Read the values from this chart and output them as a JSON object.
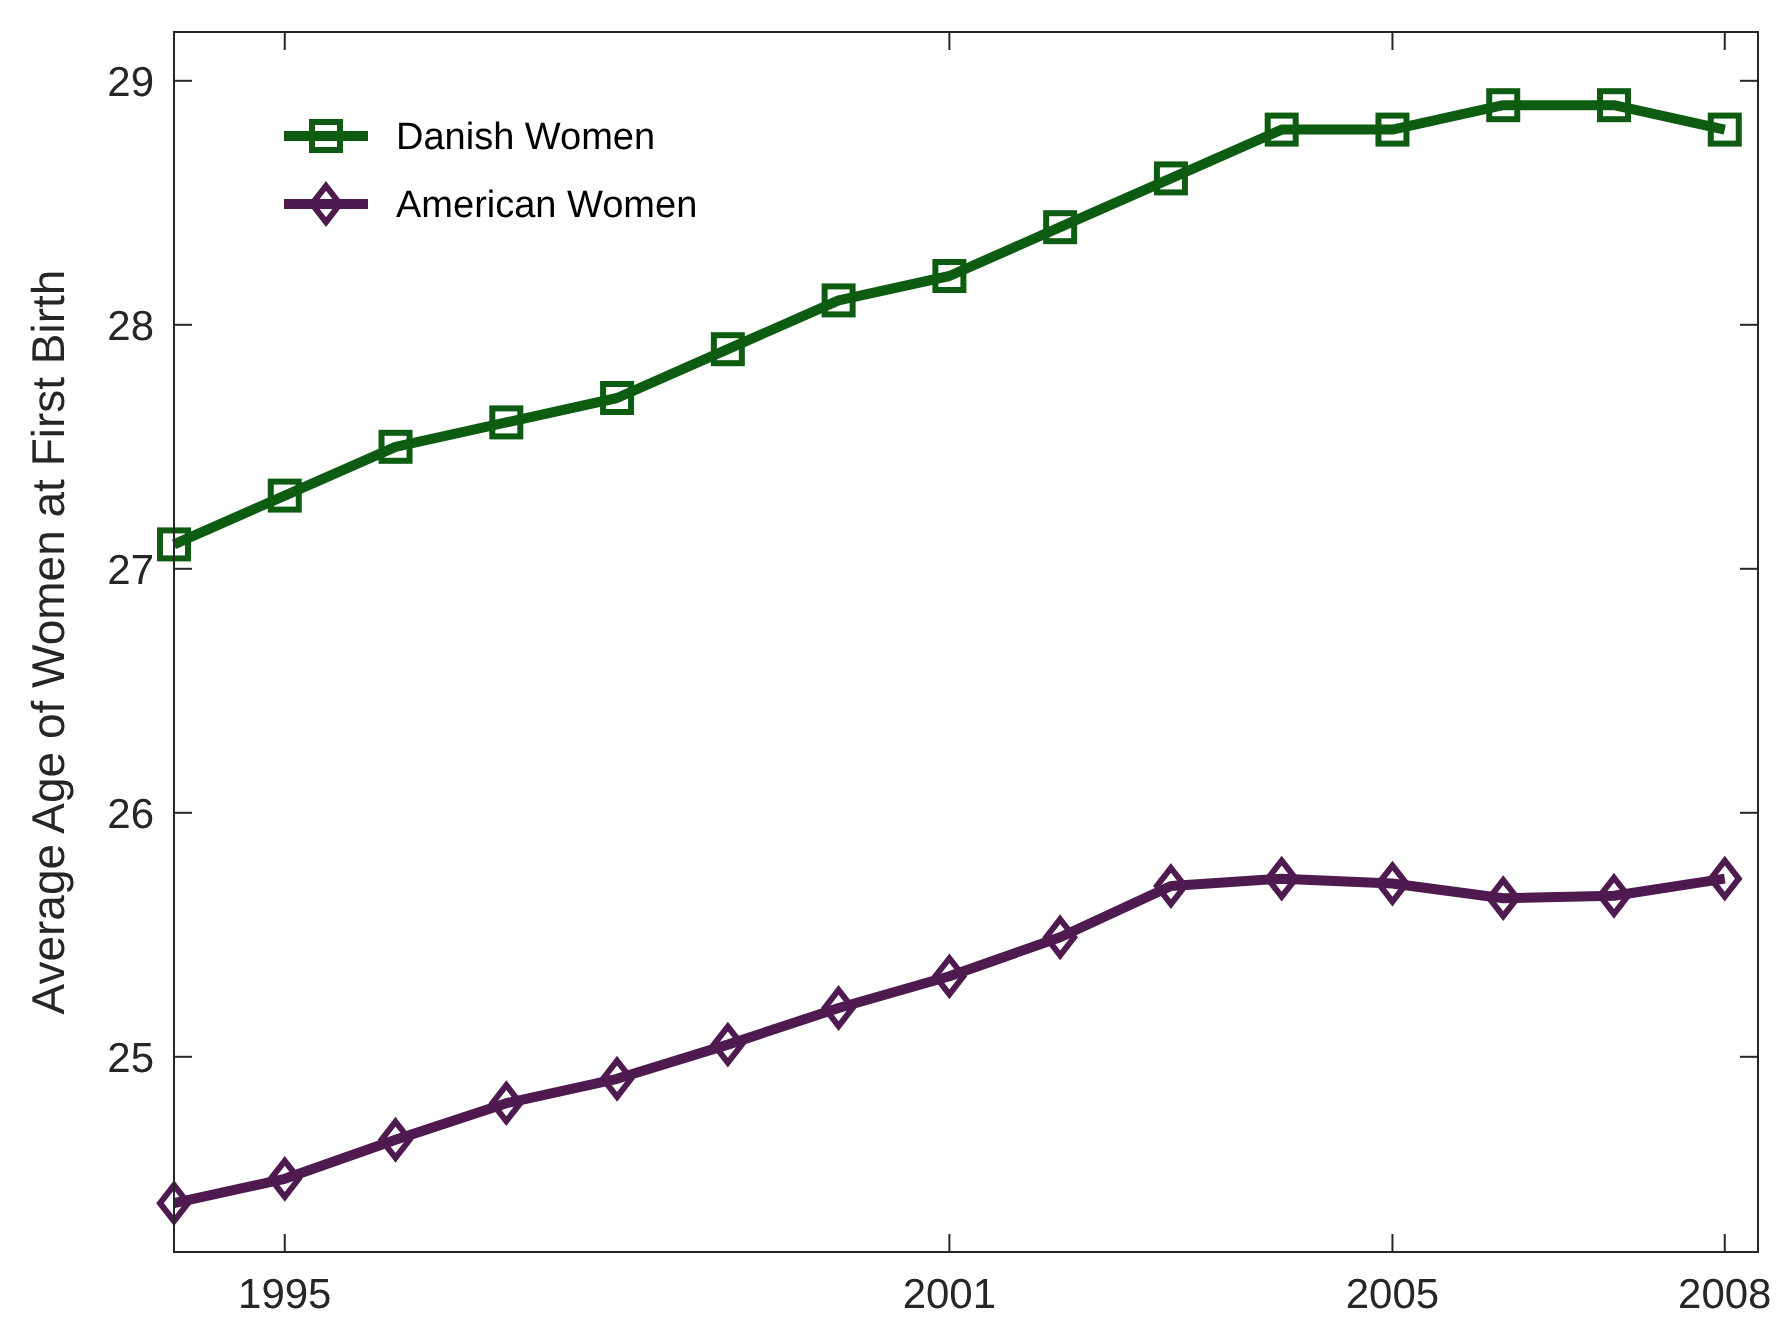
{
  "chart_data": {
    "type": "line",
    "ylabel": "Average Age of Women at First Birth",
    "x": [
      1994,
      1995,
      1996,
      1997,
      1998,
      1999,
      2000,
      2001,
      2002,
      2003,
      2004,
      2005,
      2006,
      2007,
      2008
    ],
    "series": [
      {
        "name": "Danish Women",
        "color": "#0d5c12",
        "marker": "square",
        "values": [
          27.1,
          27.3,
          27.5,
          27.6,
          27.7,
          27.9,
          28.1,
          28.2,
          28.4,
          28.6,
          28.8,
          28.8,
          28.9,
          28.9,
          28.8
        ]
      },
      {
        "name": "American Women",
        "color": "#4e1a50",
        "marker": "diamond",
        "values": [
          24.4,
          24.5,
          24.66,
          24.81,
          24.91,
          25.05,
          25.2,
          25.33,
          25.49,
          25.7,
          25.73,
          25.71,
          25.65,
          25.66,
          25.73
        ]
      }
    ],
    "xlim": [
      1994,
      2008.3
    ],
    "ylim": [
      24.2,
      29.2
    ],
    "xticks": [
      1995,
      2001,
      2005,
      2008
    ],
    "yticks": [
      25,
      26,
      27,
      28,
      29
    ],
    "grid": false,
    "legend": "top left",
    "line_style": "solid"
  }
}
